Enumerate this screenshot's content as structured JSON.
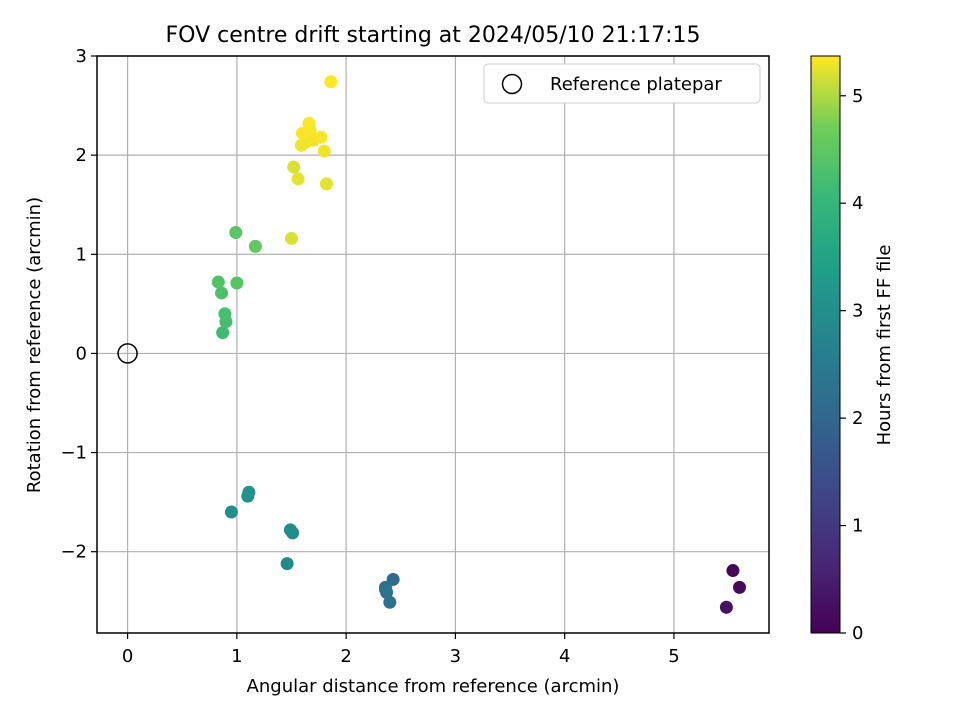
{
  "chart_data": {
    "type": "scatter",
    "title": "FOV centre drift starting at 2024/05/10 21:17:15",
    "xlabel": "Angular distance from reference (arcmin)",
    "ylabel": "Rotation from reference (arcmin)",
    "xlim": [
      -0.28,
      5.87
    ],
    "ylim": [
      -2.82,
      3.0
    ],
    "xticks": [
      0,
      1,
      2,
      3,
      4,
      5
    ],
    "yticks": [
      -2,
      -1,
      0,
      1,
      2,
      3
    ],
    "xtick_labels": [
      "0",
      "1",
      "2",
      "3",
      "4",
      "5"
    ],
    "ytick_labels": [
      "−2",
      "−1",
      "0",
      "1",
      "2",
      "3"
    ],
    "grid": true,
    "legend": {
      "placement": "top-right",
      "entries": [
        {
          "label": "Reference platepar",
          "marker": "open-circle"
        }
      ]
    },
    "reference_point": {
      "x": 0,
      "y": 0,
      "label": "Reference platepar"
    },
    "colorbar": {
      "label": "Hours from first FF file",
      "colormap": "viridis",
      "range": [
        0,
        5.37
      ],
      "ticks": [
        0,
        1,
        2,
        3,
        4,
        5
      ],
      "tick_labels": [
        "0",
        "1",
        "2",
        "3",
        "4",
        "5"
      ]
    },
    "points": [
      {
        "x": 5.54,
        "y": -2.19,
        "c": 0.05
      },
      {
        "x": 5.6,
        "y": -2.36,
        "c": 0.15
      },
      {
        "x": 5.48,
        "y": -2.56,
        "c": 0.25
      },
      {
        "x": 2.43,
        "y": -2.28,
        "c": 2.1
      },
      {
        "x": 2.36,
        "y": -2.36,
        "c": 2.15
      },
      {
        "x": 2.37,
        "y": -2.41,
        "c": 2.2
      },
      {
        "x": 2.4,
        "y": -2.51,
        "c": 2.25
      },
      {
        "x": 2.36,
        "y": -2.38,
        "c": 2.3
      },
      {
        "x": 1.46,
        "y": -2.12,
        "c": 2.85
      },
      {
        "x": 1.51,
        "y": -1.81,
        "c": 2.9
      },
      {
        "x": 1.49,
        "y": -1.78,
        "c": 2.95
      },
      {
        "x": 0.95,
        "y": -1.6,
        "c": 3.0
      },
      {
        "x": 1.1,
        "y": -1.44,
        "c": 3.05
      },
      {
        "x": 1.11,
        "y": -1.4,
        "c": 3.1
      },
      {
        "x": 0.87,
        "y": 0.21,
        "c": 4.15
      },
      {
        "x": 0.9,
        "y": 0.32,
        "c": 4.2
      },
      {
        "x": 0.89,
        "y": 0.4,
        "c": 4.25
      },
      {
        "x": 0.86,
        "y": 0.61,
        "c": 4.3
      },
      {
        "x": 0.83,
        "y": 0.72,
        "c": 4.35
      },
      {
        "x": 1.0,
        "y": 0.71,
        "c": 4.4
      },
      {
        "x": 0.99,
        "y": 1.22,
        "c": 4.45
      },
      {
        "x": 1.17,
        "y": 1.08,
        "c": 4.55
      },
      {
        "x": 1.5,
        "y": 1.16,
        "c": 5.2
      },
      {
        "x": 1.52,
        "y": 1.88,
        "c": 5.2
      },
      {
        "x": 1.56,
        "y": 1.76,
        "c": 5.25
      },
      {
        "x": 1.82,
        "y": 1.71,
        "c": 5.25
      },
      {
        "x": 1.8,
        "y": 2.04,
        "c": 5.3
      },
      {
        "x": 1.59,
        "y": 2.1,
        "c": 5.3
      },
      {
        "x": 1.63,
        "y": 2.13,
        "c": 5.3
      },
      {
        "x": 1.7,
        "y": 2.15,
        "c": 5.32
      },
      {
        "x": 1.77,
        "y": 2.18,
        "c": 5.33
      },
      {
        "x": 1.6,
        "y": 2.22,
        "c": 5.34
      },
      {
        "x": 1.67,
        "y": 2.25,
        "c": 5.35
      },
      {
        "x": 1.66,
        "y": 2.32,
        "c": 5.36
      },
      {
        "x": 1.86,
        "y": 2.74,
        "c": 5.37
      }
    ]
  }
}
